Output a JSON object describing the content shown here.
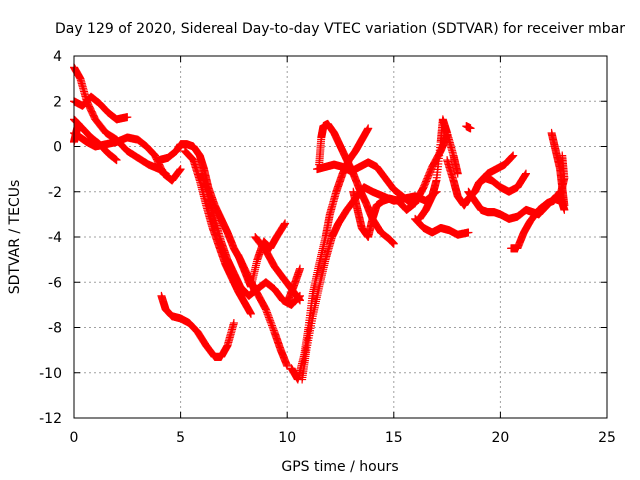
{
  "chart_data": {
    "type": "scatter",
    "title": "Day 129 of 2020, Sidereal Day-to-day VTEC variation (SDTVAR) for receiver mbar",
    "xlabel": "GPS time / hours",
    "ylabel": "SDTVAR / TECUs",
    "xlim": [
      0,
      25
    ],
    "ylim": [
      -12,
      4
    ],
    "xticks": [
      0,
      5,
      10,
      15,
      20,
      25
    ],
    "yticks": [
      -12,
      -10,
      -8,
      -6,
      -4,
      -2,
      0,
      2,
      4
    ],
    "grid": true,
    "legend": "none",
    "marker": "+",
    "color": "#ff0000",
    "series": [
      {
        "points": [
          [
            0,
            3.5
          ],
          [
            0.3,
            3.0
          ],
          [
            0.6,
            2.0
          ],
          [
            1.0,
            1.2
          ],
          [
            1.5,
            0.6
          ],
          [
            2.0,
            0.3
          ],
          [
            2.5,
            -0.2
          ],
          [
            3.0,
            -0.5
          ],
          [
            3.5,
            -0.8
          ],
          [
            4.0,
            -1.0
          ],
          [
            4.3,
            -1.2
          ]
        ]
      },
      {
        "points": [
          [
            0,
            2.0
          ],
          [
            0.4,
            1.8
          ],
          [
            0.8,
            2.2
          ],
          [
            1.2,
            1.9
          ],
          [
            1.6,
            1.5
          ],
          [
            2.0,
            1.2
          ],
          [
            2.5,
            1.3
          ]
        ]
      },
      {
        "points": [
          [
            0,
            1.2
          ],
          [
            0.4,
            0.8
          ],
          [
            0.8,
            0.4
          ],
          [
            1.2,
            0.1
          ],
          [
            1.6,
            -0.3
          ],
          [
            2.0,
            -0.6
          ]
        ]
      },
      {
        "points": [
          [
            0,
            0.6
          ],
          [
            0.3,
            0.4
          ],
          [
            0.6,
            0.2
          ],
          [
            1.0,
            0.0
          ],
          [
            1.5,
            0.1
          ],
          [
            2.0,
            0.2
          ],
          [
            2.5,
            0.4
          ],
          [
            3.0,
            0.3
          ],
          [
            3.4,
            0.0
          ],
          [
            3.8,
            -0.4
          ],
          [
            4.2,
            -1.2
          ],
          [
            4.6,
            -1.5
          ],
          [
            5.0,
            -1.0
          ]
        ]
      },
      {
        "points": [
          [
            0,
            0.2
          ],
          [
            0.1,
            0.6
          ],
          [
            0.2,
            1.0
          ]
        ]
      },
      {
        "points": [
          [
            4.0,
            -0.6
          ],
          [
            4.4,
            -0.5
          ],
          [
            4.8,
            -0.2
          ],
          [
            5.0,
            0.1
          ],
          [
            5.3,
            0.1
          ],
          [
            5.6,
            0.0
          ],
          [
            5.9,
            -0.4
          ],
          [
            6.1,
            -1.0
          ],
          [
            6.3,
            -1.8
          ],
          [
            6.6,
            -2.6
          ],
          [
            6.9,
            -3.2
          ],
          [
            7.2,
            -3.8
          ],
          [
            7.5,
            -4.5
          ],
          [
            7.8,
            -5.0
          ],
          [
            8.2,
            -5.8
          ],
          [
            8.6,
            -6.5
          ],
          [
            9.0,
            -7.2
          ],
          [
            9.4,
            -8.2
          ],
          [
            9.7,
            -9.0
          ],
          [
            10.0,
            -9.7
          ]
        ]
      },
      {
        "points": [
          [
            5.2,
            -0.2
          ],
          [
            5.6,
            -0.6
          ],
          [
            5.9,
            -1.5
          ],
          [
            6.2,
            -2.6
          ],
          [
            6.5,
            -3.6
          ],
          [
            6.8,
            -4.4
          ],
          [
            7.1,
            -5.2
          ],
          [
            7.4,
            -5.8
          ],
          [
            7.7,
            -6.4
          ],
          [
            8.0,
            -6.9
          ],
          [
            8.3,
            -7.4
          ]
        ]
      },
      {
        "points": [
          [
            6.0,
            -1.2
          ],
          [
            6.3,
            -2.2
          ],
          [
            6.6,
            -3.2
          ],
          [
            6.9,
            -4.2
          ],
          [
            7.2,
            -5.0
          ],
          [
            7.5,
            -5.6
          ],
          [
            7.8,
            -6.2
          ],
          [
            8.2,
            -6.6
          ],
          [
            8.6,
            -6.3
          ],
          [
            9.0,
            -6.0
          ],
          [
            9.4,
            -6.3
          ],
          [
            9.8,
            -6.8
          ],
          [
            10.2,
            -7.0
          ],
          [
            10.6,
            -6.6
          ]
        ]
      },
      {
        "points": [
          [
            4.1,
            -6.6
          ],
          [
            4.3,
            -7.2
          ],
          [
            4.6,
            -7.5
          ],
          [
            5.0,
            -7.6
          ],
          [
            5.4,
            -7.8
          ],
          [
            5.8,
            -8.2
          ],
          [
            6.2,
            -8.8
          ],
          [
            6.6,
            -9.3
          ],
          [
            6.9,
            -9.3
          ],
          [
            7.2,
            -8.8
          ],
          [
            7.5,
            -7.8
          ]
        ]
      },
      {
        "points": [
          [
            7.7,
            -4.8
          ],
          [
            8.0,
            -5.5
          ],
          [
            8.3,
            -6.2
          ],
          [
            8.6,
            -5.0
          ],
          [
            8.9,
            -4.2
          ],
          [
            9.2,
            -4.5
          ],
          [
            9.5,
            -4.0
          ],
          [
            9.9,
            -3.4
          ]
        ]
      },
      {
        "points": [
          [
            8.5,
            -4.0
          ],
          [
            9.0,
            -4.6
          ],
          [
            9.4,
            -5.3
          ],
          [
            9.8,
            -5.8
          ],
          [
            10.2,
            -6.3
          ],
          [
            10.6,
            -6.8
          ]
        ]
      },
      {
        "points": [
          [
            10.0,
            -6.9
          ],
          [
            10.3,
            -6.2
          ],
          [
            10.6,
            -5.4
          ]
        ]
      },
      {
        "points": [
          [
            10.2,
            -9.8
          ],
          [
            10.5,
            -10.3
          ],
          [
            10.8,
            -9.2
          ],
          [
            11.0,
            -8.0
          ],
          [
            11.2,
            -6.5
          ],
          [
            11.5,
            -5.2
          ],
          [
            11.8,
            -4.0
          ],
          [
            12.0,
            -3.0
          ],
          [
            12.3,
            -2.0
          ],
          [
            12.6,
            -1.2
          ],
          [
            12.9,
            -0.6
          ],
          [
            13.2,
            -0.2
          ],
          [
            13.5,
            0.3
          ],
          [
            13.8,
            0.8
          ]
        ]
      },
      {
        "points": [
          [
            10.7,
            -10.3
          ],
          [
            10.9,
            -9.0
          ],
          [
            11.2,
            -7.5
          ],
          [
            11.5,
            -6.2
          ],
          [
            11.8,
            -5.0
          ],
          [
            12.1,
            -4.0
          ],
          [
            12.4,
            -3.4
          ],
          [
            12.8,
            -2.8
          ],
          [
            13.2,
            -2.3
          ],
          [
            13.6,
            -1.8
          ],
          [
            14.0,
            -2.0
          ],
          [
            14.5,
            -2.2
          ],
          [
            15.0,
            -2.4
          ],
          [
            15.5,
            -2.3
          ],
          [
            16.0,
            -2.2
          ],
          [
            16.5,
            -2.4
          ],
          [
            17.0,
            -2.0
          ]
        ]
      },
      {
        "points": [
          [
            11.5,
            -0.8
          ],
          [
            11.6,
            0.4
          ],
          [
            11.7,
            0.9
          ],
          [
            11.9,
            1.0
          ],
          [
            12.2,
            0.6
          ],
          [
            12.5,
            0.0
          ],
          [
            12.8,
            -0.6
          ],
          [
            13.1,
            -1.2
          ],
          [
            13.4,
            -1.9
          ],
          [
            13.7,
            -2.5
          ],
          [
            14.0,
            -3.2
          ],
          [
            14.4,
            -3.8
          ],
          [
            14.8,
            -4.1
          ],
          [
            15.0,
            -4.3
          ]
        ]
      },
      {
        "points": [
          [
            11.4,
            -1.0
          ],
          [
            11.8,
            -0.9
          ],
          [
            12.2,
            -0.8
          ],
          [
            12.6,
            -0.9
          ],
          [
            13.0,
            -1.1
          ],
          [
            13.4,
            -0.9
          ],
          [
            13.8,
            -0.7
          ],
          [
            14.2,
            -0.9
          ],
          [
            14.6,
            -1.4
          ],
          [
            15.0,
            -1.9
          ],
          [
            15.4,
            -2.2
          ],
          [
            15.8,
            -2.5
          ],
          [
            16.0,
            -2.5
          ]
        ]
      },
      {
        "points": [
          [
            13.1,
            -2.0
          ],
          [
            13.3,
            -2.8
          ],
          [
            13.5,
            -3.6
          ],
          [
            13.8,
            -4.0
          ],
          [
            14.0,
            -3.2
          ],
          [
            14.2,
            -2.6
          ],
          [
            14.5,
            -2.4
          ],
          [
            14.8,
            -2.3
          ],
          [
            15.2,
            -2.4
          ],
          [
            15.6,
            -2.8
          ],
          [
            16.0,
            -2.5
          ],
          [
            16.4,
            -1.8
          ],
          [
            16.8,
            -0.9
          ],
          [
            17.2,
            -0.2
          ],
          [
            17.5,
            0.5
          ]
        ]
      },
      {
        "points": [
          [
            16.2,
            -3.2
          ],
          [
            16.5,
            -2.8
          ],
          [
            16.8,
            -2.2
          ],
          [
            17.0,
            -1.5
          ],
          [
            17.2,
            0.2
          ],
          [
            17.3,
            1.2
          ],
          [
            17.5,
            0.6
          ],
          [
            17.8,
            -0.4
          ],
          [
            18.0,
            -1.2
          ]
        ]
      },
      {
        "points": [
          [
            16.0,
            -3.2
          ],
          [
            16.4,
            -3.6
          ],
          [
            16.8,
            -3.8
          ],
          [
            17.2,
            -3.6
          ],
          [
            17.6,
            -3.7
          ],
          [
            18.0,
            -3.9
          ],
          [
            18.5,
            -3.8
          ]
        ]
      },
      {
        "points": [
          [
            17.5,
            -0.6
          ],
          [
            17.8,
            -1.5
          ],
          [
            18.0,
            -2.2
          ],
          [
            18.3,
            -2.6
          ],
          [
            18.5,
            -2.3
          ],
          [
            18.8,
            -2.0
          ],
          [
            19.0,
            -1.6
          ],
          [
            19.3,
            -1.4
          ],
          [
            19.6,
            -1.5
          ],
          [
            20.0,
            -1.8
          ],
          [
            20.4,
            -2.0
          ],
          [
            20.8,
            -1.8
          ],
          [
            21.2,
            -1.2
          ]
        ]
      },
      {
        "points": [
          [
            18.5,
            -2.0
          ],
          [
            18.8,
            -2.4
          ],
          [
            19.1,
            -2.8
          ],
          [
            19.4,
            -2.9
          ],
          [
            19.7,
            -2.9
          ],
          [
            20.0,
            -3.0
          ],
          [
            20.4,
            -3.2
          ],
          [
            20.8,
            -3.1
          ],
          [
            21.2,
            -2.8
          ],
          [
            21.5,
            -2.9
          ],
          [
            21.8,
            -3.0
          ],
          [
            22.2,
            -2.6
          ],
          [
            22.5,
            -2.3
          ],
          [
            22.8,
            -2.4
          ]
        ]
      },
      {
        "points": [
          [
            18.4,
            0.9
          ],
          [
            18.6,
            0.8
          ]
        ]
      },
      {
        "points": [
          [
            19.0,
            -1.6
          ],
          [
            19.4,
            -1.2
          ],
          [
            19.8,
            -1.0
          ],
          [
            20.2,
            -0.8
          ],
          [
            20.6,
            -0.4
          ]
        ]
      },
      {
        "points": [
          [
            20.5,
            -4.5
          ],
          [
            20.8,
            -4.5
          ],
          [
            21.1,
            -3.8
          ],
          [
            21.4,
            -3.3
          ],
          [
            21.8,
            -2.8
          ],
          [
            22.2,
            -2.5
          ],
          [
            22.5,
            -2.4
          ],
          [
            22.8,
            -2.0
          ]
        ]
      },
      {
        "points": [
          [
            22.4,
            0.6
          ],
          [
            22.6,
            -0.2
          ],
          [
            22.8,
            -1.0
          ],
          [
            22.9,
            -1.8
          ],
          [
            23.0,
            -2.6
          ]
        ]
      },
      {
        "points": [
          [
            22.9,
            -0.4
          ],
          [
            23.0,
            -1.4
          ],
          [
            22.8,
            -2.2
          ],
          [
            23.0,
            -2.8
          ]
        ]
      }
    ]
  }
}
